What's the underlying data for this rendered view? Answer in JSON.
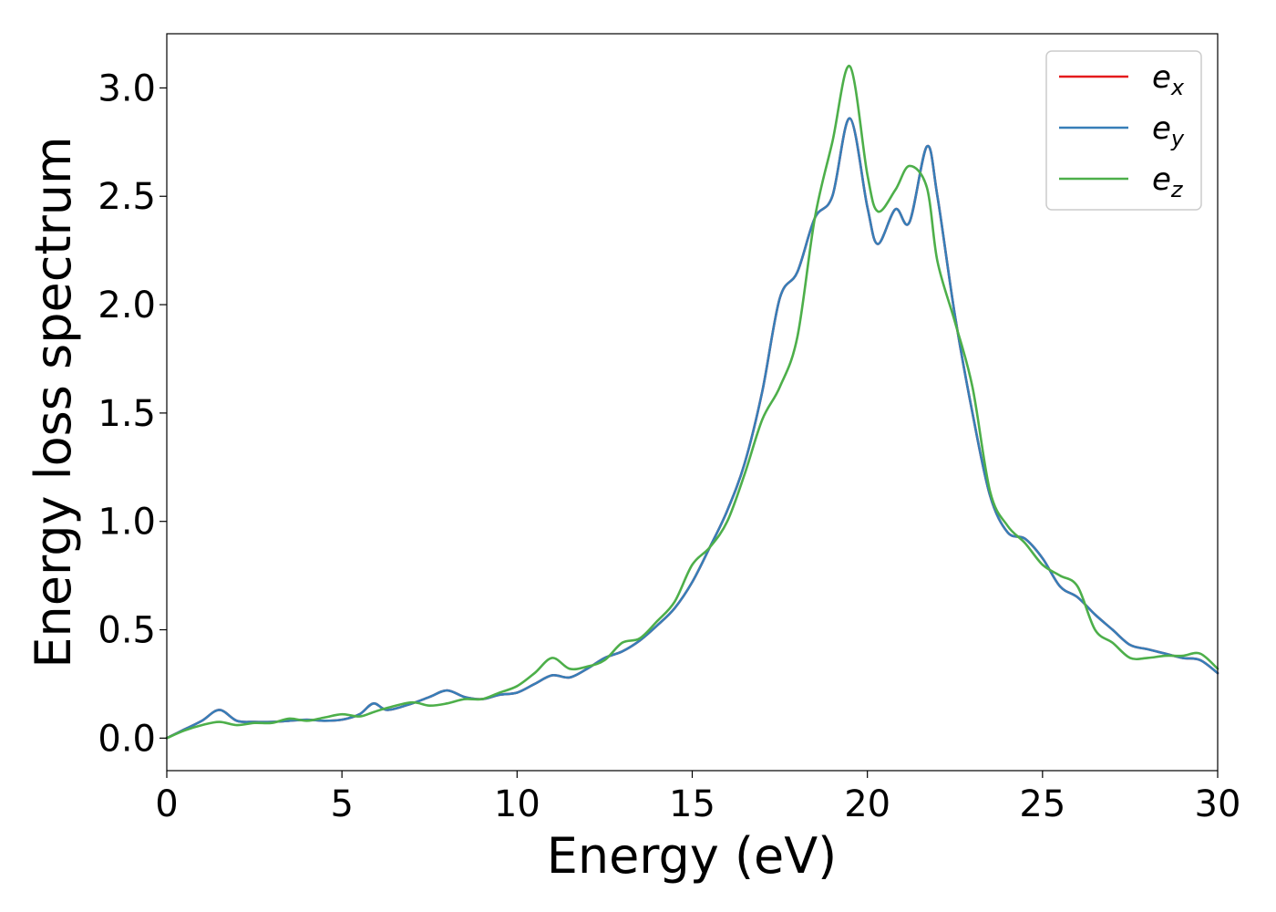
{
  "chart_data": {
    "type": "line",
    "title": "",
    "xlabel": "Energy (eV)",
    "ylabel": "Energy loss spectrum",
    "xlim": [
      0,
      30
    ],
    "ylim": [
      -0.15,
      3.25
    ],
    "xticks": [
      "0",
      "5",
      "10",
      "15",
      "20",
      "25",
      "30"
    ],
    "yticks": [
      "0.0",
      "0.5",
      "1.0",
      "1.5",
      "2.0",
      "2.5",
      "3.0"
    ],
    "grid": false,
    "legend_position": "top-right",
    "x": [
      0,
      0.5,
      1,
      1.5,
      2,
      2.5,
      3,
      3.5,
      4,
      4.5,
      5,
      5.5,
      5.9,
      6.3,
      7,
      7.5,
      8,
      8.5,
      9,
      9.5,
      10,
      10.5,
      11,
      11.5,
      12,
      12.5,
      13,
      13.5,
      14,
      14.5,
      15,
      15.5,
      16,
      16.5,
      17,
      17.5,
      18,
      18.5,
      19,
      19.5,
      20,
      20.3,
      20.8,
      21.2,
      21.7,
      22,
      22.5,
      23,
      23.5,
      24,
      24.5,
      25,
      25.5,
      26,
      26.5,
      27,
      27.5,
      28,
      28.5,
      29,
      29.5,
      30
    ],
    "series": [
      {
        "name": "e",
        "subscript": "x",
        "color": "#e41a1c",
        "values": [
          0.0,
          0.04,
          0.08,
          0.13,
          0.08,
          0.075,
          0.075,
          0.08,
          0.085,
          0.08,
          0.085,
          0.11,
          0.16,
          0.13,
          0.16,
          0.19,
          0.22,
          0.19,
          0.18,
          0.2,
          0.21,
          0.25,
          0.29,
          0.28,
          0.32,
          0.37,
          0.4,
          0.45,
          0.52,
          0.6,
          0.72,
          0.88,
          1.05,
          1.27,
          1.6,
          2.03,
          2.15,
          2.4,
          2.5,
          2.86,
          2.45,
          2.28,
          2.44,
          2.38,
          2.73,
          2.5,
          1.95,
          1.5,
          1.12,
          0.95,
          0.92,
          0.83,
          0.7,
          0.65,
          0.57,
          0.5,
          0.43,
          0.41,
          0.39,
          0.37,
          0.36,
          0.3
        ]
      },
      {
        "name": "e",
        "subscript": "y",
        "color": "#377eb8",
        "values": [
          0.0,
          0.04,
          0.08,
          0.13,
          0.08,
          0.075,
          0.075,
          0.08,
          0.085,
          0.08,
          0.085,
          0.11,
          0.16,
          0.13,
          0.16,
          0.19,
          0.22,
          0.19,
          0.18,
          0.2,
          0.21,
          0.25,
          0.29,
          0.28,
          0.32,
          0.37,
          0.4,
          0.45,
          0.52,
          0.6,
          0.72,
          0.88,
          1.05,
          1.27,
          1.6,
          2.03,
          2.15,
          2.4,
          2.5,
          2.86,
          2.45,
          2.28,
          2.44,
          2.38,
          2.73,
          2.5,
          1.95,
          1.5,
          1.12,
          0.95,
          0.92,
          0.83,
          0.7,
          0.65,
          0.57,
          0.5,
          0.43,
          0.41,
          0.39,
          0.37,
          0.36,
          0.3
        ]
      },
      {
        "name": "e",
        "subscript": "z",
        "color": "#4daf4a",
        "values": [
          0.0,
          0.035,
          0.06,
          0.075,
          0.06,
          0.07,
          0.07,
          0.09,
          0.08,
          0.095,
          0.11,
          0.1,
          0.12,
          0.14,
          0.165,
          0.15,
          0.16,
          0.18,
          0.18,
          0.21,
          0.24,
          0.3,
          0.37,
          0.32,
          0.33,
          0.36,
          0.44,
          0.46,
          0.54,
          0.63,
          0.8,
          0.88,
          1.0,
          1.22,
          1.47,
          1.62,
          1.85,
          2.4,
          2.75,
          3.1,
          2.6,
          2.43,
          2.53,
          2.64,
          2.54,
          2.2,
          1.92,
          1.62,
          1.14,
          0.98,
          0.9,
          0.8,
          0.75,
          0.7,
          0.5,
          0.44,
          0.37,
          0.37,
          0.38,
          0.38,
          0.39,
          0.32
        ]
      }
    ]
  }
}
